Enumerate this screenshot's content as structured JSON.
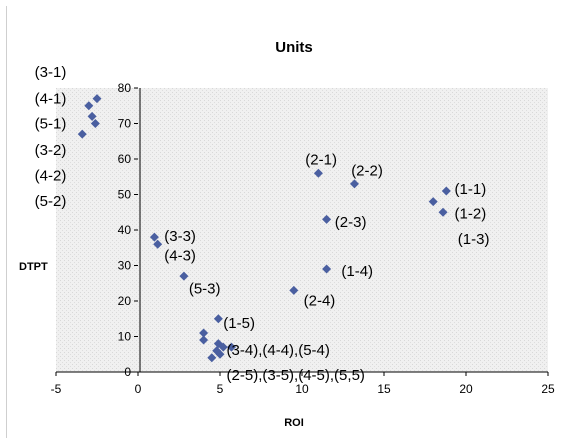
{
  "chart_data": {
    "type": "scatter",
    "title": "Units",
    "xlabel": "ROI",
    "ylabel": "DTPT",
    "xlim": [
      -5,
      25
    ],
    "ylim": [
      0,
      80
    ],
    "xticks": [
      -5,
      0,
      5,
      10,
      15,
      20,
      25
    ],
    "yticks": [
      0,
      10,
      20,
      30,
      40,
      50,
      60,
      70,
      80
    ],
    "grid": false,
    "legend": "none",
    "marker_color": "#4a5fa0",
    "points": [
      {
        "x": -2.5,
        "y": 77
      },
      {
        "x": -3.0,
        "y": 75
      },
      {
        "x": -2.8,
        "y": 72
      },
      {
        "x": -2.6,
        "y": 70
      },
      {
        "x": -3.4,
        "y": 67
      },
      {
        "x": 11.0,
        "y": 56
      },
      {
        "x": 13.2,
        "y": 53
      },
      {
        "x": 18.8,
        "y": 51
      },
      {
        "x": 18.0,
        "y": 48
      },
      {
        "x": 18.6,
        "y": 45
      },
      {
        "x": 11.5,
        "y": 43
      },
      {
        "x": 1.0,
        "y": 38
      },
      {
        "x": 1.2,
        "y": 36
      },
      {
        "x": 11.5,
        "y": 29
      },
      {
        "x": 2.8,
        "y": 27
      },
      {
        "x": 9.5,
        "y": 23
      },
      {
        "x": 4.9,
        "y": 15
      },
      {
        "x": 4.0,
        "y": 11
      },
      {
        "x": 4.0,
        "y": 9
      },
      {
        "x": 4.9,
        "y": 8
      },
      {
        "x": 5.2,
        "y": 7
      },
      {
        "x": 5.7,
        "y": 7
      },
      {
        "x": 4.8,
        "y": 6
      },
      {
        "x": 5.0,
        "y": 5
      },
      {
        "x": 4.5,
        "y": 4
      }
    ],
    "annotations": [
      {
        "text": "(3-1)",
        "x": -6.3,
        "y": 84.5
      },
      {
        "text": "(4-1)",
        "x": -6.3,
        "y": 77
      },
      {
        "text": "(5-1)",
        "x": -6.3,
        "y": 70
      },
      {
        "text": "(3-2)",
        "x": -6.3,
        "y": 62.5
      },
      {
        "text": "(4-2)",
        "x": -6.3,
        "y": 55.3
      },
      {
        "text": "(5-2)",
        "x": -6.3,
        "y": 48.2
      },
      {
        "text": "(2-1)",
        "x": 10.2,
        "y": 59.8
      },
      {
        "text": "(2-2)",
        "x": 13.0,
        "y": 56.8
      },
      {
        "text": "(1-1)",
        "x": 19.3,
        "y": 51.5
      },
      {
        "text": "(1-2)",
        "x": 19.3,
        "y": 44.7
      },
      {
        "text": "(1-3)",
        "x": 19.5,
        "y": 37.5
      },
      {
        "text": "(2-3)",
        "x": 12.0,
        "y": 42.3
      },
      {
        "text": "(3-3)",
        "x": 1.6,
        "y": 38.3
      },
      {
        "text": "(4-3)",
        "x": 1.6,
        "y": 32.8
      },
      {
        "text": "(1-4)",
        "x": 12.4,
        "y": 28.5
      },
      {
        "text": "(5-3)",
        "x": 3.1,
        "y": 23.5
      },
      {
        "text": "(2-4)",
        "x": 10.1,
        "y": 20.2
      },
      {
        "text": "(1-5)",
        "x": 5.2,
        "y": 13.8
      },
      {
        "text": "(3-4),(4-4),(5-4)",
        "x": 5.4,
        "y": 6.2
      },
      {
        "text": "(2-5),(3-5),(4-5),(5,5)",
        "x": 5.4,
        "y": -0.8
      }
    ]
  }
}
